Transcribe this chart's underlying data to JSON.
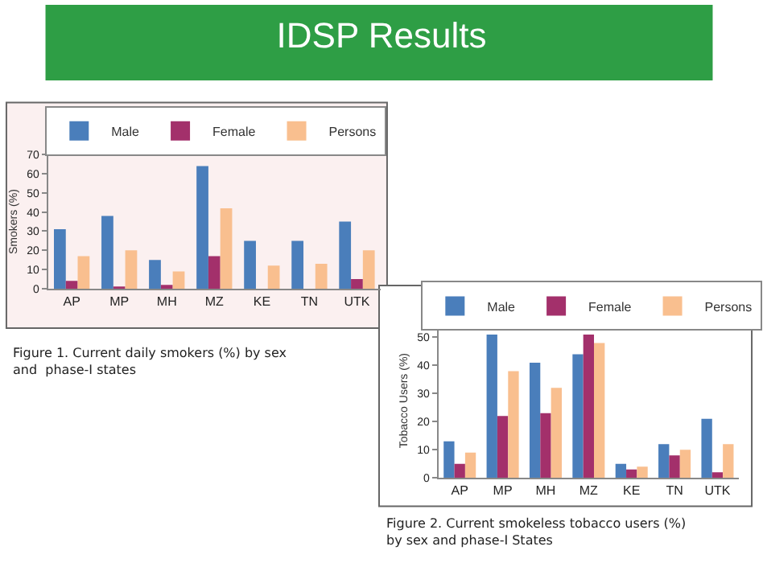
{
  "chart_data": [
    {
      "type": "bar",
      "title": "IDSP Results",
      "ylabel": "Smokers (%)",
      "categories": [
        "AP",
        "MP",
        "MH",
        "MZ",
        "KE",
        "TN",
        "UTK"
      ],
      "series": [
        {
          "name": "Male",
          "color": "#4a7ebb",
          "values": [
            31,
            38,
            15,
            64,
            25,
            25,
            35
          ]
        },
        {
          "name": "Female",
          "color": "#a3306b",
          "values": [
            4,
            1,
            2,
            17,
            0,
            0,
            5
          ]
        },
        {
          "name": "Persons",
          "color": "#f9bf8f",
          "values": [
            17,
            20,
            9,
            42,
            12,
            13,
            20
          ]
        }
      ],
      "ylim": [
        0,
        70
      ],
      "yticks": [
        0,
        10,
        20,
        30,
        40,
        50,
        60,
        70
      ],
      "grid": false,
      "legend": "top",
      "annotations": [
        "Figure 1. Current daily smokers (%) by sex and  phase-I states"
      ]
    },
    {
      "type": "bar",
      "ylabel": "Tobacco Users (%)",
      "categories": [
        "AP",
        "MP",
        "MH",
        "MZ",
        "KE",
        "TN",
        "UTK"
      ],
      "series": [
        {
          "name": "Male",
          "color": "#4a7ebb",
          "values": [
            13,
            51,
            41,
            44,
            5,
            12,
            21
          ]
        },
        {
          "name": "Female",
          "color": "#a3306b",
          "values": [
            5,
            22,
            23,
            51,
            3,
            8,
            2
          ]
        },
        {
          "name": "Persons",
          "color": "#f9bf8f",
          "values": [
            9,
            38,
            32,
            48,
            4,
            10,
            12
          ]
        }
      ],
      "ylim": [
        0,
        55
      ],
      "yticks": [
        0,
        10,
        20,
        30,
        40,
        50
      ],
      "grid": false,
      "legend": "top",
      "annotations": [
        "Figure 2. Current smokeless tobacco users (%) by sex and phase-I States"
      ]
    }
  ]
}
